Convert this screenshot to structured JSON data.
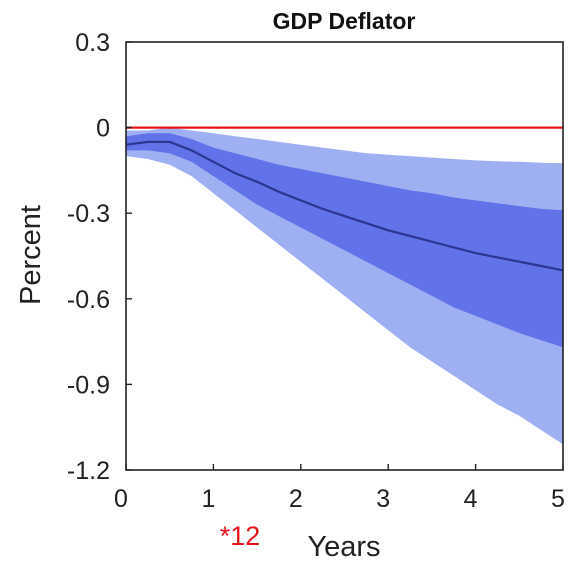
{
  "chart_data": {
    "type": "area",
    "title": "GDP Deflator",
    "xlabel": "Years",
    "ylabel": "Percent",
    "xlim": [
      0,
      5
    ],
    "ylim": [
      -1.2,
      0.3
    ],
    "xticks": [
      0,
      1,
      2,
      3,
      4,
      5
    ],
    "xtick_labels": [
      "0",
      "1",
      "2",
      "3",
      "4",
      "5"
    ],
    "yticks": [
      0.3,
      0,
      -0.3,
      -0.6,
      -0.9,
      -1.2
    ],
    "ytick_labels": [
      "0.3",
      "0",
      "-0.3",
      "-0.6",
      "-0.9",
      "-1.2"
    ],
    "grid": false,
    "x": [
      0,
      0.25,
      0.5,
      0.75,
      1,
      1.25,
      1.5,
      1.75,
      2,
      2.25,
      2.5,
      2.75,
      3,
      3.25,
      3.5,
      3.75,
      4,
      4.25,
      4.5,
      4.75,
      5
    ],
    "series": [
      {
        "role": "outer-band-upper",
        "values": [
          -0.01,
          -0.01,
          0.0,
          -0.01,
          -0.02,
          -0.03,
          -0.04,
          -0.05,
          -0.06,
          -0.07,
          -0.08,
          -0.09,
          -0.095,
          -0.1,
          -0.105,
          -0.11,
          -0.115,
          -0.118,
          -0.12,
          -0.123,
          -0.125
        ]
      },
      {
        "role": "inner-band-upper",
        "values": [
          -0.03,
          -0.02,
          -0.02,
          -0.04,
          -0.07,
          -0.09,
          -0.11,
          -0.13,
          -0.145,
          -0.16,
          -0.175,
          -0.19,
          -0.205,
          -0.22,
          -0.23,
          -0.245,
          -0.255,
          -0.265,
          -0.275,
          -0.285,
          -0.29
        ]
      },
      {
        "role": "median",
        "values": [
          -0.06,
          -0.05,
          -0.05,
          -0.08,
          -0.12,
          -0.16,
          -0.19,
          -0.225,
          -0.255,
          -0.285,
          -0.31,
          -0.335,
          -0.36,
          -0.38,
          -0.4,
          -0.42,
          -0.44,
          -0.455,
          -0.47,
          -0.485,
          -0.5
        ]
      },
      {
        "role": "inner-band-lower",
        "values": [
          -0.08,
          -0.08,
          -0.09,
          -0.12,
          -0.17,
          -0.22,
          -0.27,
          -0.31,
          -0.35,
          -0.39,
          -0.43,
          -0.47,
          -0.51,
          -0.55,
          -0.59,
          -0.63,
          -0.66,
          -0.69,
          -0.72,
          -0.745,
          -0.77
        ]
      },
      {
        "role": "outer-band-lower",
        "values": [
          -0.1,
          -0.11,
          -0.13,
          -0.17,
          -0.23,
          -0.29,
          -0.35,
          -0.41,
          -0.47,
          -0.53,
          -0.59,
          -0.65,
          -0.71,
          -0.77,
          -0.82,
          -0.87,
          -0.92,
          -0.97,
          -1.01,
          -1.06,
          -1.11
        ]
      }
    ],
    "reference_line": {
      "y": 0,
      "color": "#e8141c"
    },
    "colors": {
      "outer_band": "#9fb0f2",
      "inner_band": "#6272e8",
      "median": "#2b3592",
      "axis": "#222222"
    }
  },
  "annotation": {
    "text": "*12",
    "color": "#e8141c"
  }
}
